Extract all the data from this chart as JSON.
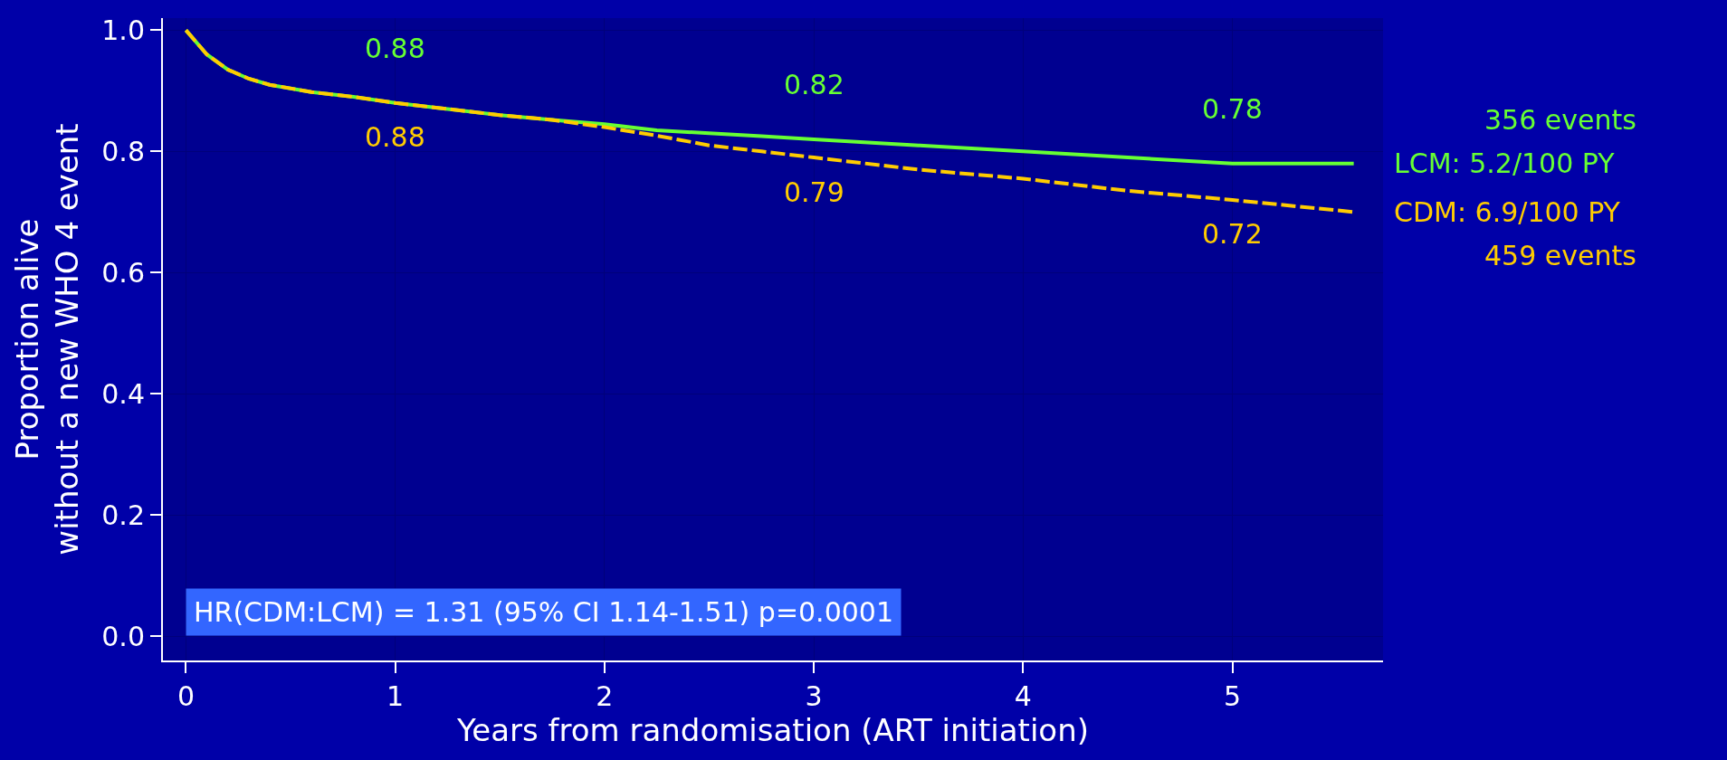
{
  "chart_data": {
    "type": "line",
    "xlabel": "Years from randomisation (ART initiation)",
    "ylabel": "Proportion alive\nwithout a new WHO 4 event",
    "x": [
      0,
      0.1,
      0.2,
      0.3,
      0.4,
      0.6,
      0.8,
      1,
      1.25,
      1.5,
      1.75,
      2,
      2.25,
      2.5,
      2.75,
      3,
      3.5,
      4,
      4.5,
      5,
      5.58
    ],
    "series": [
      {
        "name": "LCM: 5.2/100 PY",
        "color": "#66ff33",
        "line_style": "solid",
        "values": [
          1,
          0.96,
          0.935,
          0.92,
          0.91,
          0.898,
          0.89,
          0.88,
          0.87,
          0.86,
          0.852,
          0.845,
          0.835,
          0.83,
          0.825,
          0.82,
          0.81,
          0.8,
          0.79,
          0.78,
          0.78
        ]
      },
      {
        "name": "CDM: 6.9/100 PY",
        "color": "#ffcc00",
        "line_style": "dashed",
        "values": [
          1,
          0.96,
          0.935,
          0.92,
          0.91,
          0.898,
          0.89,
          0.88,
          0.87,
          0.86,
          0.852,
          0.84,
          0.826,
          0.81,
          0.8,
          0.79,
          0.77,
          0.755,
          0.735,
          0.72,
          0.7
        ]
      }
    ],
    "annotations": [
      {
        "text": "0.88",
        "x": 1,
        "y": 0.88
      },
      {
        "text": "0.82",
        "x": 3,
        "y": 0.82
      },
      {
        "text": "0.78",
        "x": 5,
        "y": 0.78
      },
      {
        "text": "0.88",
        "x": 1,
        "y": 0.88
      },
      {
        "text": "0.79",
        "x": 3,
        "y": 0.79
      },
      {
        "text": "0.72",
        "x": 5,
        "y": 0.72
      },
      "356 events",
      "459 events",
      "HR(CDM:LCM) = 1.31 (95% CI 1.14-1.51) p=0.0001"
    ],
    "xlim": [
      -0.11,
      5.72
    ],
    "ylim": [
      -0.04,
      1.02
    ],
    "xticks": [
      0,
      1,
      2,
      3,
      4,
      5
    ],
    "yticks": [
      {
        "value": 0,
        "label": "0.0"
      },
      0.2,
      0.4,
      0.6,
      0.8,
      {
        "value": 1,
        "label": "1.0"
      }
    ],
    "grid": true,
    "legend": false
  }
}
